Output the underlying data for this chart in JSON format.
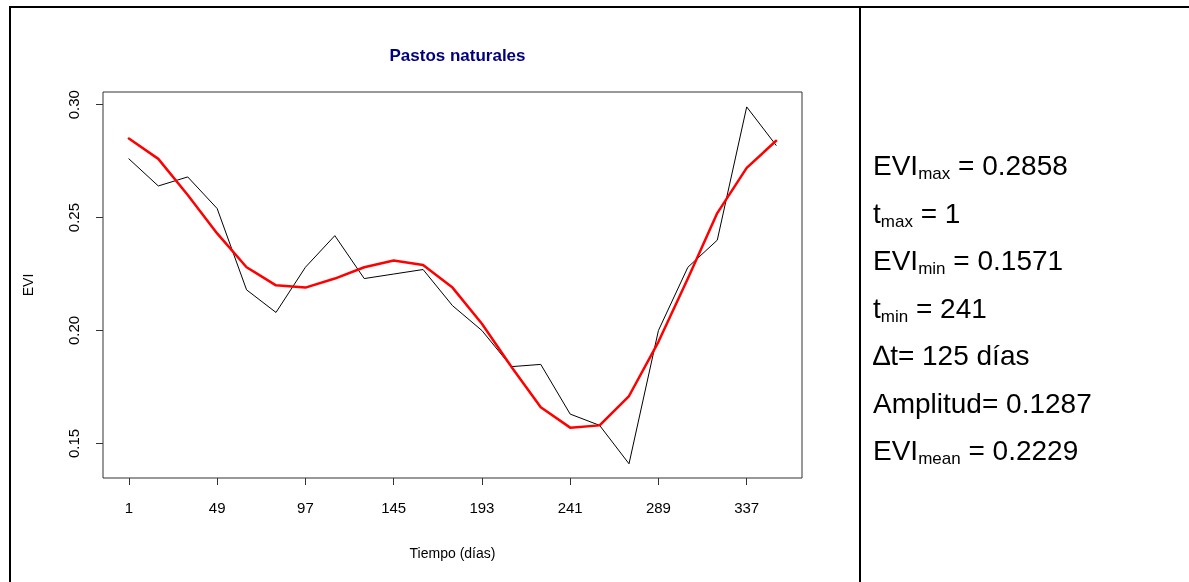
{
  "chart_data": {
    "type": "line",
    "title": "Pastos naturales",
    "xlabel": "Tiempo (días)",
    "ylabel": "EVI",
    "x": [
      1,
      17,
      33,
      49,
      65,
      81,
      97,
      113,
      129,
      145,
      161,
      177,
      193,
      209,
      225,
      241,
      257,
      273,
      289,
      305,
      321,
      337,
      353
    ],
    "series": [
      {
        "color": "#000000",
        "values": [
          0.276,
          0.264,
          0.268,
          0.254,
          0.218,
          0.208,
          0.228,
          0.242,
          0.223,
          0.225,
          0.227,
          0.211,
          0.2,
          0.184,
          0.185,
          0.163,
          0.158,
          0.141,
          0.2,
          0.228,
          0.24,
          0.299,
          0.282
        ]
      },
      {
        "color": "#ff0000",
        "values": [
          0.285,
          0.276,
          0.26,
          0.243,
          0.228,
          0.22,
          0.219,
          0.223,
          0.228,
          0.231,
          0.229,
          0.219,
          0.203,
          0.184,
          0.166,
          0.157,
          0.158,
          0.171,
          0.195,
          0.223,
          0.252,
          0.272,
          0.284
        ]
      }
    ],
    "xlim": [
      -13.08,
      367.08
    ],
    "xticks": [
      1,
      49,
      97,
      145,
      193,
      241,
      289,
      337
    ],
    "ylim": [
      0.1347,
      0.3056
    ],
    "yticks": [
      {
        "value": 0.15,
        "label": "0.15"
      },
      {
        "value": 0.2,
        "label": "0.20"
      },
      {
        "value": 0.25,
        "label": "0.25"
      },
      {
        "value": 0.3,
        "label": "0.30"
      }
    ],
    "grid": false,
    "marker": "none",
    "line_style": "solid",
    "annotations": [
      "EVI$_{max}$ = 0.2858",
      "t$_{max}$ = 1",
      "EVI$_{min}$ = 0.1571",
      "t$_{min}$ = 241",
      "∆t= 125 días",
      "Amplitud= 0.1287",
      "EVI$_{mean}$ = 0.2229"
    ]
  }
}
